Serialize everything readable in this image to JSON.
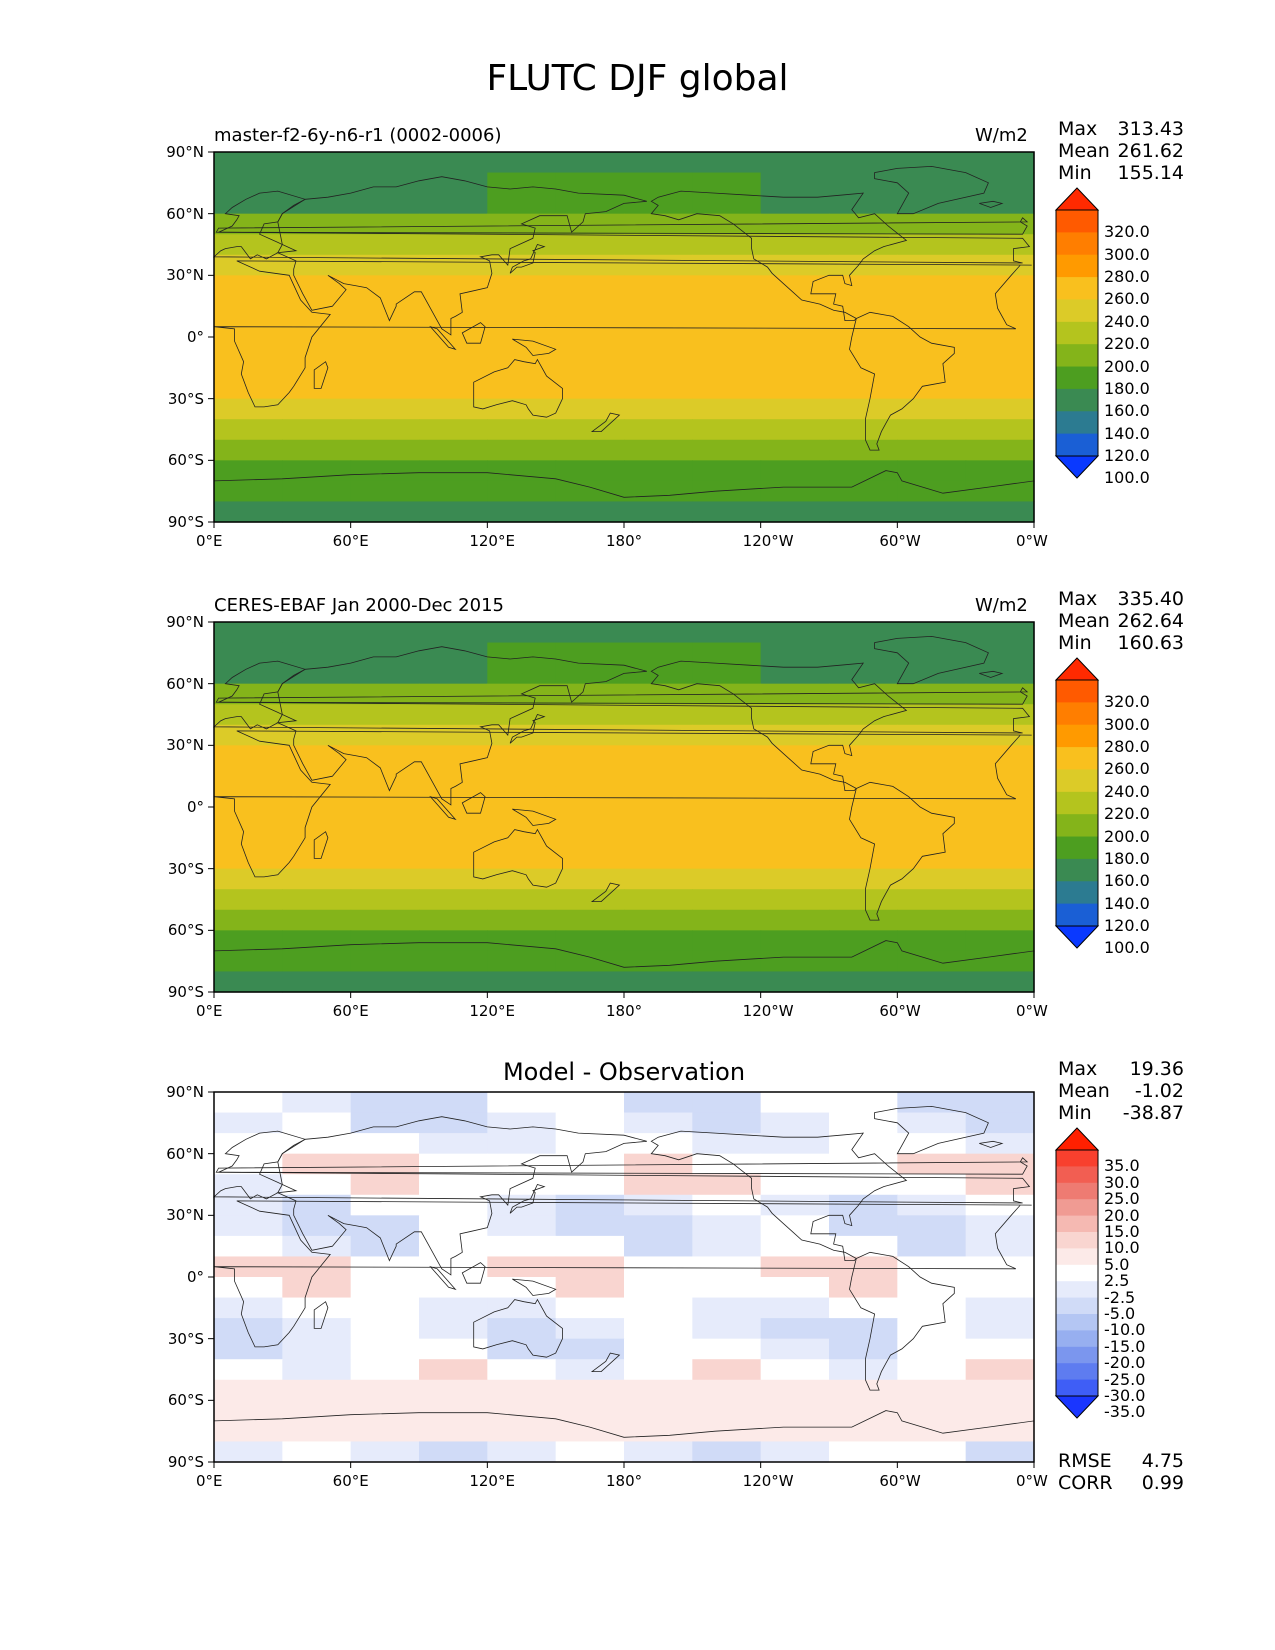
{
  "figure_title": "FLUTC DJF global",
  "x_ticks": [
    "0°E",
    "60°E",
    "120°E",
    "180°",
    "120°W",
    "60°W",
    "0°W"
  ],
  "y_ticks": [
    "90°N",
    "60°N",
    "30°N",
    "0°",
    "30°S",
    "60°S",
    "90°S"
  ],
  "panels": [
    {
      "subtitle": "master-f2-6y-n6-r1 (0002-0006)",
      "units": "W/m2",
      "stats": [
        {
          "label": "Max",
          "value": "313.43"
        },
        {
          "label": "Mean",
          "value": "261.62"
        },
        {
          "label": "Min",
          "value": "155.14"
        }
      ],
      "colorbar_labels": [
        "320.0",
        "300.0",
        "280.0",
        "260.0",
        "240.0",
        "220.0",
        "200.0",
        "180.0",
        "160.0",
        "140.0",
        "120.0",
        "100.0"
      ],
      "colorbar_colors": [
        "#ff2a00",
        "#ff5a00",
        "#ff7e00",
        "#ff9a00",
        "#f9c01e",
        "#dccb28",
        "#b4c41e",
        "#84b41a",
        "#4d9e20",
        "#3a8a52",
        "#2c7b91",
        "#1a5fd5",
        "#0a39ff"
      ]
    },
    {
      "subtitle": "CERES-EBAF Jan 2000-Dec 2015",
      "units": "W/m2",
      "stats": [
        {
          "label": "Max",
          "value": "335.40"
        },
        {
          "label": "Mean",
          "value": "262.64"
        },
        {
          "label": "Min",
          "value": "160.63"
        }
      ],
      "colorbar_labels": [
        "320.0",
        "300.0",
        "280.0",
        "260.0",
        "240.0",
        "220.0",
        "200.0",
        "180.0",
        "160.0",
        "140.0",
        "120.0",
        "100.0"
      ],
      "colorbar_colors": [
        "#ff2a00",
        "#ff5a00",
        "#ff7e00",
        "#ff9a00",
        "#f9c01e",
        "#dccb28",
        "#b4c41e",
        "#84b41a",
        "#4d9e20",
        "#3a8a52",
        "#2c7b91",
        "#1a5fd5",
        "#0a39ff"
      ]
    },
    {
      "subtitle": "Model - Observation",
      "units": "",
      "stats": [
        {
          "label": "Max",
          "value": "19.36"
        },
        {
          "label": "Mean",
          "value": "-1.02"
        },
        {
          "label": "Min",
          "value": "-38.87"
        }
      ],
      "colorbar_labels": [
        "35.0",
        "30.0",
        "25.0",
        "20.0",
        "15.0",
        "10.0",
        "5.0",
        "2.5",
        "-2.5",
        "-5.0",
        "-10.0",
        "-15.0",
        "-20.0",
        "-25.0",
        "-30.0",
        "-35.0"
      ],
      "colorbar_colors": [
        "#ff2000",
        "#f8402e",
        "#f25e52",
        "#ee7b72",
        "#f09b93",
        "#f5b9b2",
        "#f9d5d0",
        "#fceae8",
        "#ffffff",
        "#e6ebfb",
        "#d0dbf7",
        "#b4c6f3",
        "#97aff0",
        "#7b96ee",
        "#5e7cf0",
        "#3f5ef6",
        "#1a36ff"
      ],
      "metrics": [
        {
          "label": "RMSE",
          "value": "4.75"
        },
        {
          "label": "CORR",
          "value": "0.99"
        }
      ]
    }
  ]
}
